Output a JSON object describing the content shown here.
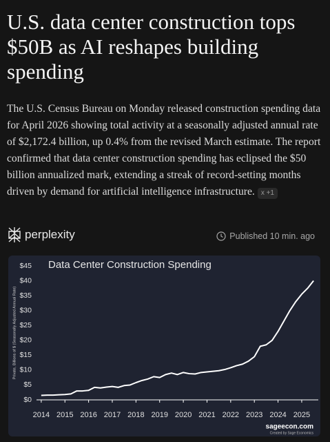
{
  "header": {
    "title": "U.S. data center construction tops $50B as AI reshapes building spending"
  },
  "article": {
    "body": "The U.S. Census Bureau on Monday released construction spending data for April 2026 showing total activity at a seasonally adjusted annual rate of $2,172.4 billion, up 0.4% from the revised March estimate. The report confirmed that data center construction spending has eclipsed the $50 billion annualized mark, extending a streak of record-setting months driven by demand for artificial intelligence infrastructure.",
    "badge": {
      "close": "x",
      "count": "+1"
    }
  },
  "source": {
    "brand": "perplexity",
    "published": "Published 10 min. ago"
  },
  "chart_data": {
    "type": "line",
    "title": "Data Center Construction Spending",
    "y_label": "Private, Billions of $ (Seasonally Adjusted Annual Rate)",
    "watermark": "sageecon.com",
    "credit": "Created by Sage Economics",
    "x": [
      2014,
      2014.25,
      2014.5,
      2014.75,
      2015,
      2015.25,
      2015.5,
      2015.75,
      2016,
      2016.25,
      2016.5,
      2016.75,
      2017,
      2017.25,
      2017.5,
      2017.75,
      2018,
      2018.25,
      2018.5,
      2018.75,
      2019,
      2019.25,
      2019.5,
      2019.75,
      2020,
      2020.25,
      2020.5,
      2020.75,
      2021,
      2021.25,
      2021.5,
      2021.75,
      2022,
      2022.25,
      2022.5,
      2022.75,
      2023,
      2023.25,
      2023.5,
      2023.75,
      2024,
      2024.25,
      2024.5,
      2024.75,
      2025,
      2025.25,
      2025.5
    ],
    "series": [
      {
        "name": "Data Center Construction Spending",
        "color": "#ffffff",
        "values": [
          1.5,
          1.6,
          1.6,
          1.7,
          1.8,
          2.0,
          3.0,
          3.0,
          3.2,
          4.2,
          4.0,
          4.3,
          4.5,
          4.2,
          4.8,
          5.0,
          5.8,
          6.5,
          7.0,
          7.8,
          7.5,
          8.5,
          9.0,
          8.5,
          9.2,
          8.8,
          8.7,
          9.2,
          9.4,
          9.6,
          9.8,
          10.2,
          10.8,
          11.5,
          12.0,
          13.0,
          14.5,
          18.0,
          18.5,
          20.0,
          23.0,
          26.5,
          30.0,
          33.0,
          35.5,
          37.5,
          40.0
        ]
      }
    ],
    "xlim": [
      2013.8,
      2025.7
    ],
    "xticks": [
      2014,
      2015,
      2016,
      2017,
      2018,
      2019,
      2020,
      2021,
      2022,
      2023,
      2024,
      2025
    ],
    "ylim": [
      0,
      45
    ],
    "yticks": [
      {
        "value": 0,
        "label": "$0"
      },
      {
        "value": 5,
        "label": "$5"
      },
      {
        "value": 10,
        "label": "$10"
      },
      {
        "value": 15,
        "label": "$15"
      },
      {
        "value": 20,
        "label": "$20"
      },
      {
        "value": 25,
        "label": "$25"
      },
      {
        "value": 30,
        "label": "$30"
      },
      {
        "value": 35,
        "label": "$35"
      },
      {
        "value": 40,
        "label": "$40"
      },
      {
        "value": 45,
        "label": "$45"
      }
    ],
    "grid": false
  }
}
